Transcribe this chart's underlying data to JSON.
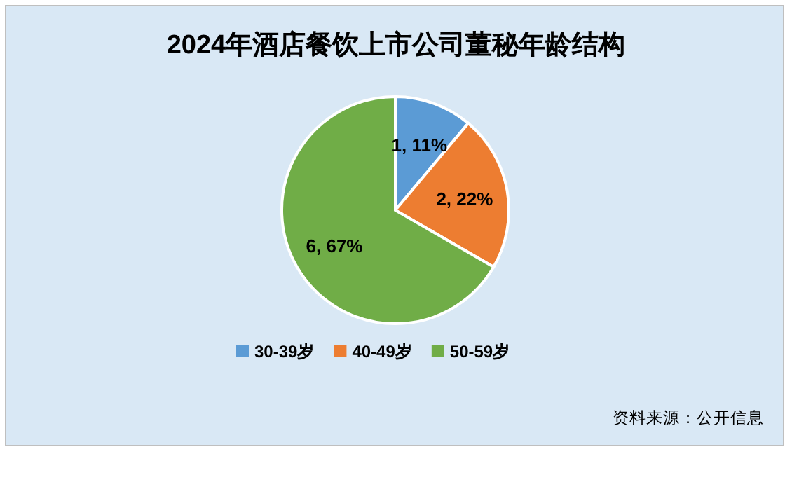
{
  "chart_data": {
    "type": "pie",
    "title": "2024年酒店餐饮上市公司董秘年龄结构",
    "categories": [
      "30-39岁",
      "40-49岁",
      "50-59岁"
    ],
    "values": [
      1,
      2,
      6
    ],
    "value_labels": [
      "1, 11%",
      "2, 22%",
      "6, 67%"
    ],
    "colors": [
      "#5b9bd5",
      "#ed7d31",
      "#70ad47"
    ],
    "legend": "bottom",
    "annotations": [
      "资料来源：公开信息"
    ]
  }
}
